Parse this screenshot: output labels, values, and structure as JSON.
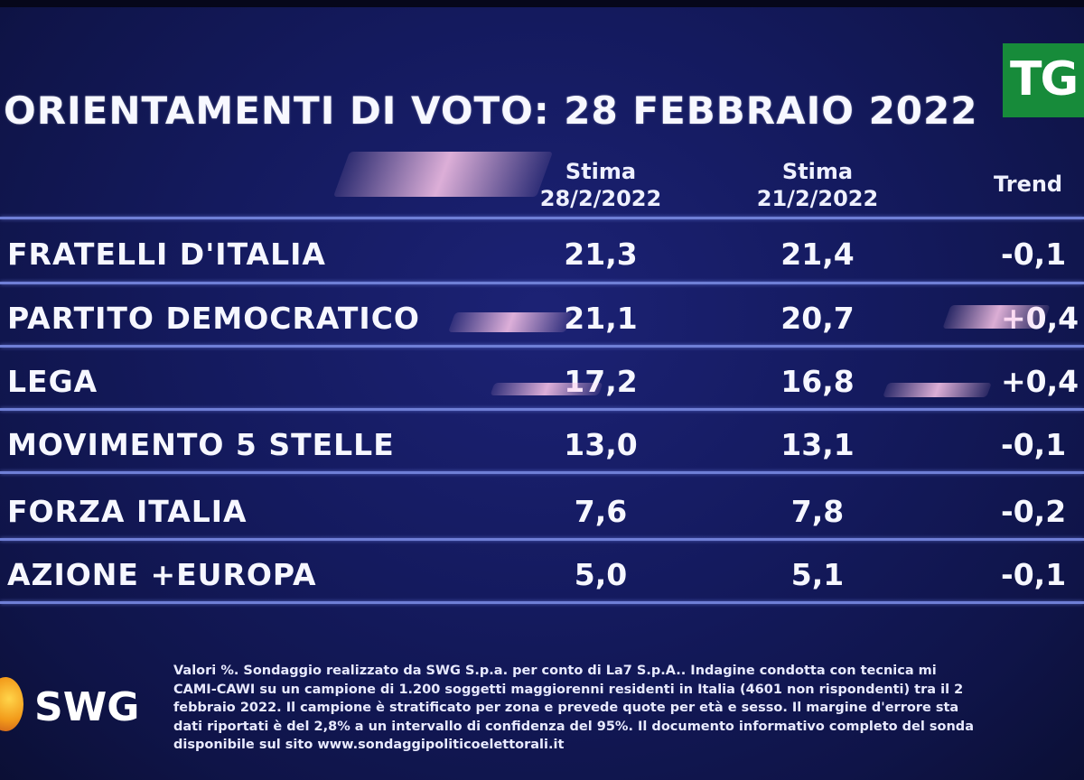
{
  "title": "ORIENTAMENTI DI VOTO: 28 FEBBRAIO 2022",
  "logo": {
    "text": "TG",
    "color": "#178b3a"
  },
  "columns": {
    "current": {
      "line1": "Stima",
      "line2": "28/2/2022"
    },
    "previous": {
      "line1": "Stima",
      "line2": "21/2/2022"
    },
    "trend": "Trend"
  },
  "rows": [
    {
      "party": "FRATELLI D'ITALIA",
      "current": "21,3",
      "previous": "21,4",
      "trend": "-0,1"
    },
    {
      "party": "PARTITO DEMOCRATICO",
      "current": "21,1",
      "previous": "20,7",
      "trend": "+0,4"
    },
    {
      "party": "LEGA",
      "current": "17,2",
      "previous": "16,8",
      "trend": "+0,4"
    },
    {
      "party": "MOVIMENTO 5 STELLE",
      "current": "13,0",
      "previous": "13,1",
      "trend": "-0,1"
    },
    {
      "party": "FORZA ITALIA",
      "current": "7,6",
      "previous": "7,8",
      "trend": "-0,2"
    },
    {
      "party": "AZIONE +EUROPA",
      "current": "5,0",
      "previous": "5,1",
      "trend": "-0,1"
    }
  ],
  "source_logo": {
    "text": "SWG"
  },
  "footnote": [
    "Valori %. Sondaggio realizzato da SWG S.p.a. per conto di La7 S.p.A.. Indagine condotta con tecnica mi",
    "CAMI-CAWI su un campione di 1.200 soggetti maggiorenni residenti in Italia (4601 non rispondenti) tra il 2",
    "febbraio 2022. Il campione è stratificato per zona e prevede quote per età e sesso. Il margine d'errore sta",
    "dati riportati è del 2,8% a un intervallo di confidenza del 95%. Il documento informativo completo del sonda",
    "disponibile sul sito www.sondaggipoliticoelettorali.it"
  ]
}
